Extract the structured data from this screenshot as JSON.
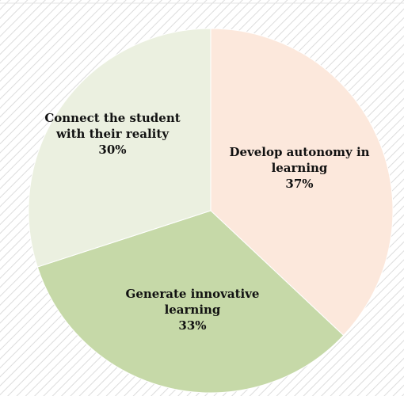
{
  "chart_data": {
    "type": "pie",
    "slices": [
      {
        "label": [
          "Develop autonomy in",
          "learning"
        ],
        "value": 37,
        "value_label": "37%",
        "color": "#fce8dc"
      },
      {
        "label": [
          "Generate innovative",
          "learning"
        ],
        "value": 33,
        "value_label": "33%",
        "color": "#c6d9a8"
      },
      {
        "label": [
          "Connect the student",
          "with their reality"
        ],
        "value": 30,
        "value_label": "30%",
        "color": "#ebf0e0"
      }
    ],
    "start_angle_deg": 0,
    "direction": "clockwise",
    "legend": "none",
    "data_labels": "inside"
  },
  "colors": {
    "background": "#ffffff",
    "hatch_line": "#dcdcdc",
    "slice_border": "#ffffff",
    "label_text": "#111111"
  }
}
